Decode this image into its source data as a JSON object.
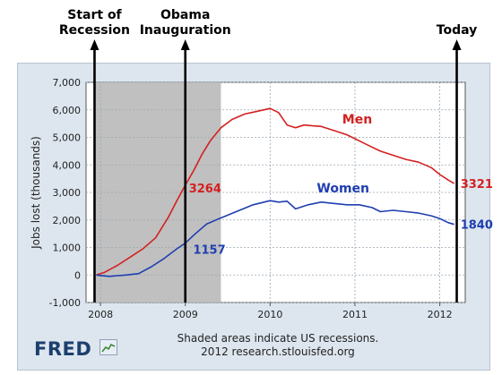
{
  "chart_data": {
    "type": "line",
    "ylabel": "Jobs lost (thousands)",
    "ylim": [
      -1000,
      7000
    ],
    "yticks": [
      "7,000",
      "6,000",
      "5,000",
      "4,000",
      "3,000",
      "2,000",
      "1,000",
      "0",
      "-1,000"
    ],
    "xticks": [
      "2008",
      "2009",
      "2010",
      "2011",
      "2012"
    ],
    "xlim": [
      2007.83,
      2012.3
    ],
    "recession_shade": [
      2007.92,
      2009.42
    ],
    "grid": true,
    "series": [
      {
        "name": "Men",
        "color": "#d42020",
        "end_label": "3321",
        "x": [
          2007.95,
          2008.05,
          2008.2,
          2008.35,
          2008.5,
          2008.65,
          2008.8,
          2008.9,
          2009.0,
          2009.1,
          2009.2,
          2009.3,
          2009.42,
          2009.55,
          2009.7,
          2009.85,
          2010.0,
          2010.1,
          2010.2,
          2010.3,
          2010.4,
          2010.5,
          2010.6,
          2010.75,
          2010.9,
          2011.0,
          2011.1,
          2011.2,
          2011.3,
          2011.45,
          2011.6,
          2011.75,
          2011.9,
          2012.0,
          2012.1,
          2012.17
        ],
        "y": [
          0,
          100,
          350,
          650,
          950,
          1350,
          2100,
          2700,
          3264,
          3800,
          4400,
          4900,
          5350,
          5650,
          5850,
          5950,
          6050,
          5900,
          5450,
          5350,
          5450,
          5420,
          5400,
          5250,
          5100,
          4950,
          4800,
          4650,
          4500,
          4350,
          4200,
          4100,
          3900,
          3650,
          3450,
          3321
        ]
      },
      {
        "name": "Women",
        "color": "#1f3eb0",
        "end_label": "1840",
        "x": [
          2007.95,
          2008.1,
          2008.3,
          2008.45,
          2008.6,
          2008.75,
          2008.9,
          2009.0,
          2009.1,
          2009.25,
          2009.4,
          2009.6,
          2009.8,
          2010.0,
          2010.1,
          2010.2,
          2010.3,
          2010.45,
          2010.6,
          2010.75,
          2010.9,
          2011.05,
          2011.2,
          2011.3,
          2011.45,
          2011.6,
          2011.75,
          2011.9,
          2012.0,
          2012.1,
          2012.17
        ],
        "y": [
          0,
          -50,
          0,
          50,
          300,
          600,
          950,
          1157,
          1450,
          1850,
          2050,
          2300,
          2550,
          2700,
          2650,
          2680,
          2400,
          2550,
          2650,
          2600,
          2550,
          2550,
          2450,
          2300,
          2350,
          2300,
          2250,
          2150,
          2050,
          1900,
          1840
        ]
      }
    ],
    "point_labels": [
      {
        "text": "3264",
        "x": 2009.0,
        "y": 3264,
        "color": "#d42020"
      },
      {
        "text": "1157",
        "x": 2009.05,
        "y": 1157,
        "color": "#1f3eb0"
      }
    ],
    "annotations": [
      {
        "text": "Start of\nRecession",
        "x": 2007.93
      },
      {
        "text": "Obama\nInauguration",
        "x": 2009.0
      },
      {
        "text": "Today",
        "x": 2012.2
      }
    ]
  },
  "footer": {
    "note": "Shaded areas indicate US recessions.",
    "source": "2012 research.stlouisfed.org"
  },
  "logo": {
    "text": "FRED"
  }
}
